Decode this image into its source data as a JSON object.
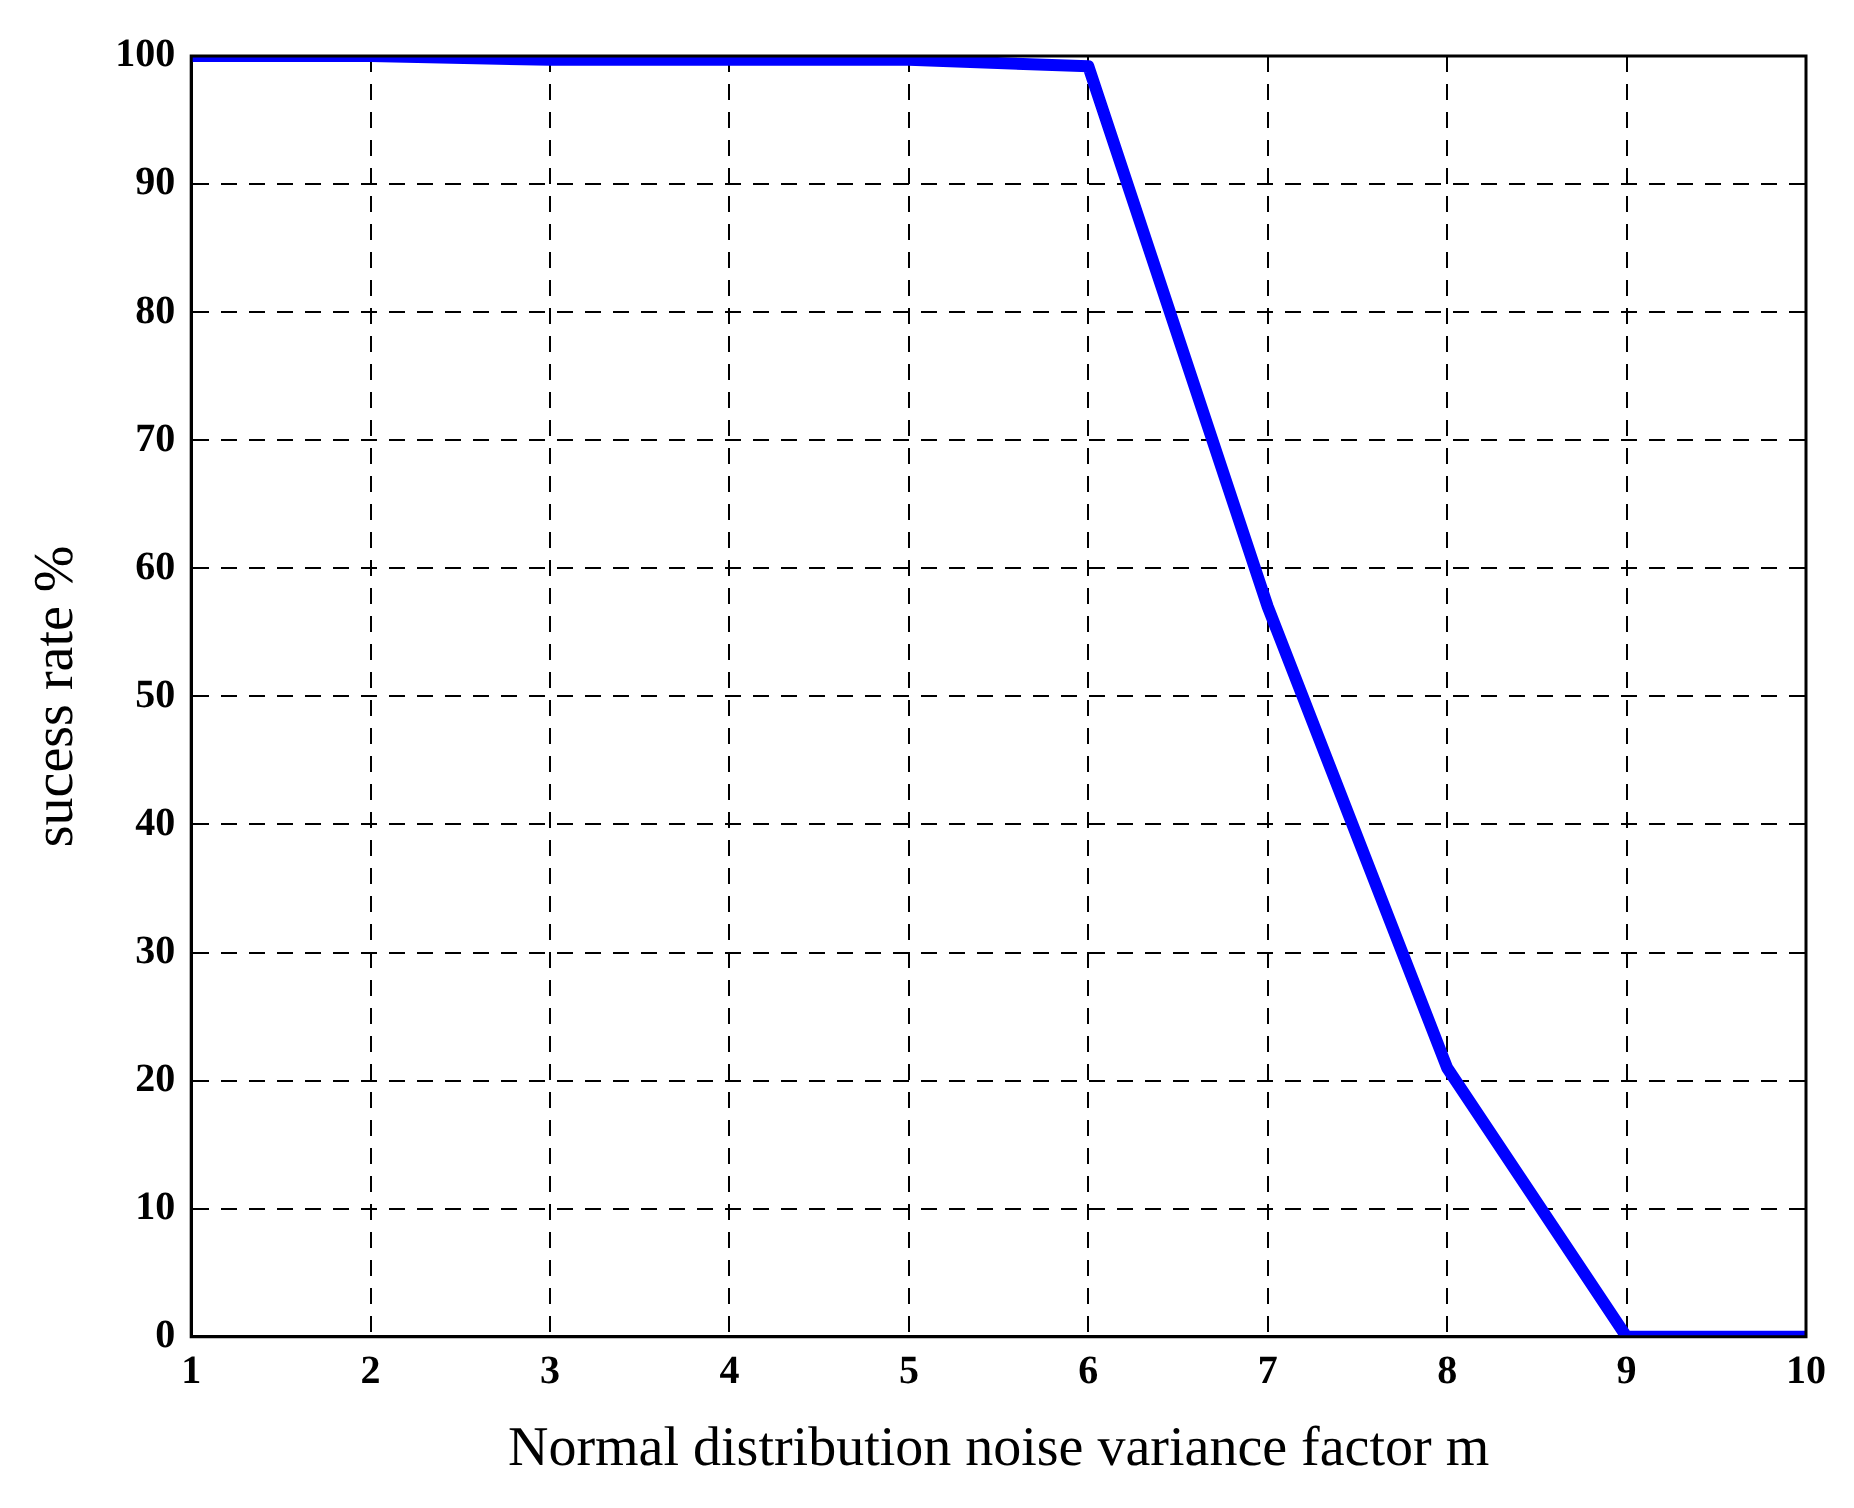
{
  "chart_data": {
    "type": "line",
    "xlabel": "Normal distribution noise variance factor m",
    "ylabel": "sucess rate %",
    "x": [
      1,
      2,
      3,
      4,
      5,
      6,
      7,
      8,
      9,
      10
    ],
    "series": [
      {
        "color": "#0000ff",
        "values": [
          100,
          100,
          99.7,
          99.7,
          99.7,
          99.2,
          57,
          21,
          0,
          0
        ]
      }
    ],
    "xlim": [
      1,
      10
    ],
    "xticks": [
      1,
      2,
      3,
      4,
      5,
      6,
      7,
      8,
      9,
      10
    ],
    "ylim": [
      0,
      100
    ],
    "yticks": [
      0,
      10,
      20,
      30,
      40,
      50,
      60,
      70,
      80,
      90,
      100
    ],
    "grid": true,
    "legend": false,
    "marker": "none",
    "line_style": "solid"
  }
}
